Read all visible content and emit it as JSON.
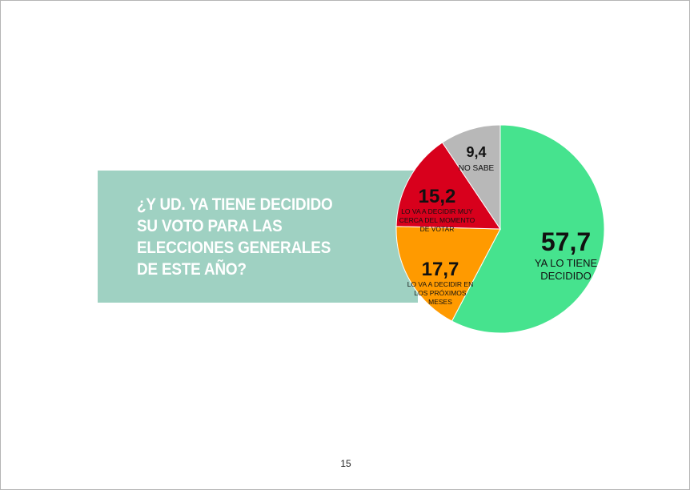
{
  "question": {
    "lines": [
      "¿Y UD. YA TIENE DECIDIDO",
      "SU VOTO PARA LAS",
      "ELECCIONES GENERALES",
      "DE ESTE AÑO?"
    ]
  },
  "chart_data": {
    "type": "pie",
    "values": [
      57.7,
      17.7,
      15.2,
      9.4
    ],
    "value_labels": [
      "57,7",
      "17,7",
      "15,2",
      "9,4"
    ],
    "categories": [
      [
        "YA LO TIENE",
        "DECIDIDO"
      ],
      [
        "LO VA A DECIDIR EN",
        "LOS PRÓXIMOS",
        "MESES"
      ],
      [
        "LO VA A DECIDIR MUY",
        "CERCA DEL MOMENTO",
        "DE VOTAR"
      ],
      [
        "NO SABE"
      ]
    ],
    "colors": [
      "#46e38e",
      "#ff9a00",
      "#d8001c",
      "#b8b8b8"
    ],
    "start": "12 o'clock",
    "direction": "clockwise"
  },
  "footer": {
    "page_number": "15"
  }
}
